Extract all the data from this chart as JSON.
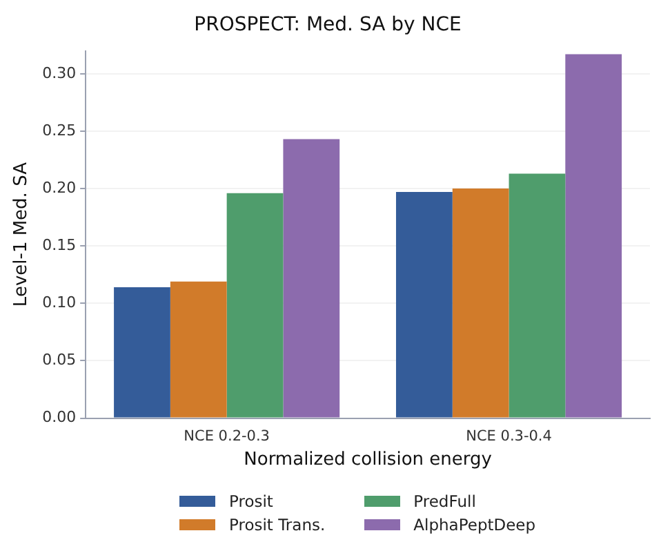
{
  "chart_data": {
    "type": "bar",
    "title": "PROSPECT: Med. SA by NCE",
    "xlabel": "Normalized collision energy",
    "ylabel": "Level-1 Med. SA",
    "categories": [
      "NCE 0.2-0.3",
      "NCE 0.3-0.4"
    ],
    "series": [
      {
        "name": "Prosit",
        "color": "#345c99",
        "values": [
          0.114,
          0.197
        ]
      },
      {
        "name": "Prosit Trans.",
        "color": "#d17b2a",
        "values": [
          0.119,
          0.2
        ]
      },
      {
        "name": "PredFull",
        "color": "#4f9d6c",
        "values": [
          0.196,
          0.213
        ]
      },
      {
        "name": "AlphaPeptDeep",
        "color": "#8c6bad",
        "values": [
          0.243,
          0.317
        ]
      }
    ],
    "ylim": [
      0,
      0.32
    ],
    "yticks": [
      {
        "value": 0,
        "label": "0.00"
      },
      0.05,
      {
        "value": 0.1,
        "label": "0.10"
      },
      0.15,
      {
        "value": 0.2,
        "label": "0.20"
      },
      0.25,
      {
        "value": 0.3,
        "label": "0.30"
      }
    ],
    "grid": "y",
    "legend": "bottom"
  }
}
